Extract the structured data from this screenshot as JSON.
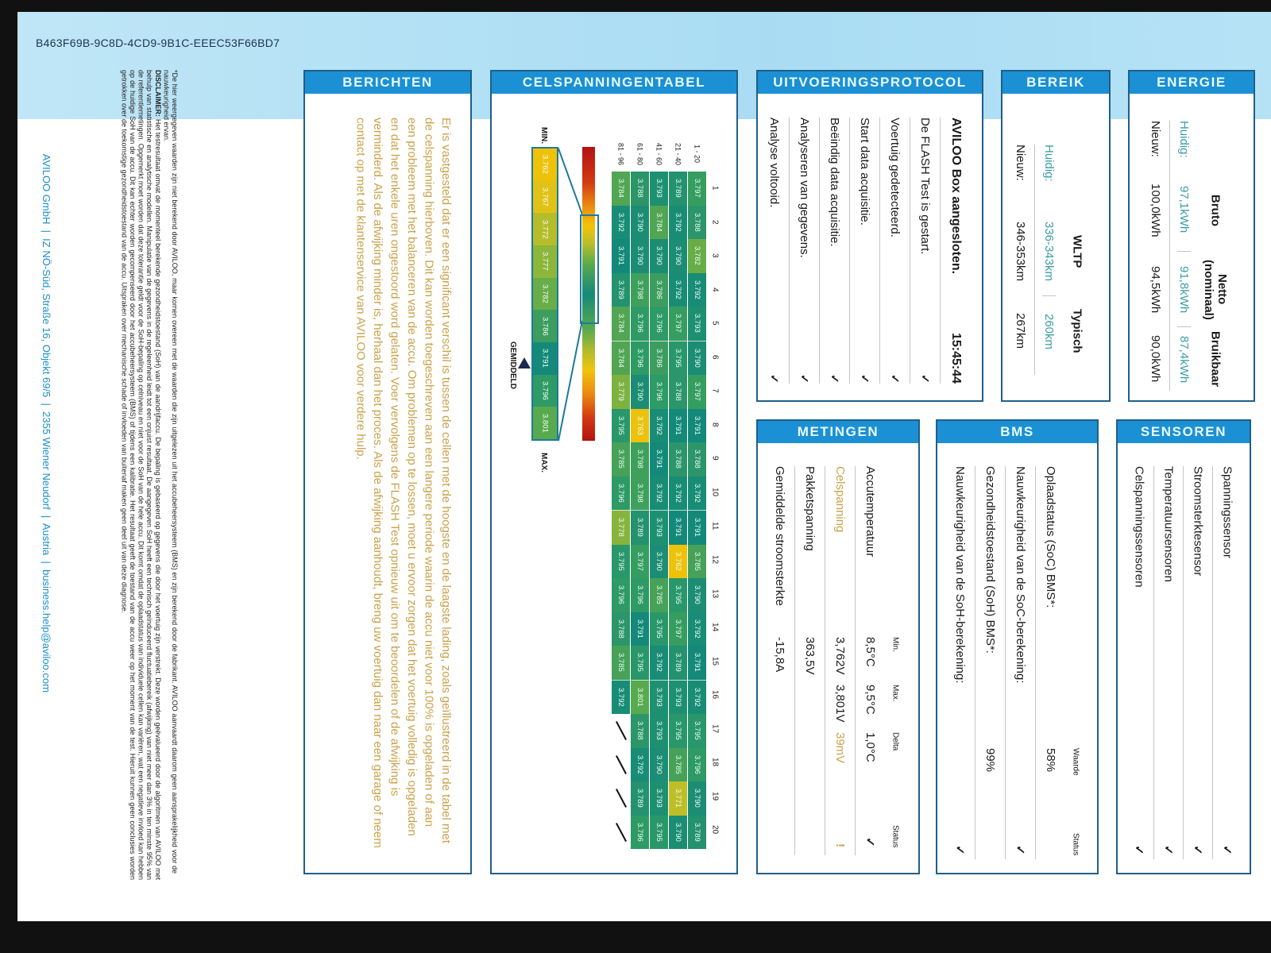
{
  "document_id": "B463F69B-9C8D-4CD9-9B1C-EEEC53F66BD7",
  "berichten": {
    "title": "BERICHTEN",
    "message": "Er is vastgesteld dat er een significant verschil is tussen de cellen met de hoogste en de laagste lading, zoals geïllustreerd in de tabel met de celspanning hierboven. Dit kan worden toegeschreven aan een langere periode waarin de accu niet voor 100% is opgeladen of aan een probleem met het balanceren van de accu. Om problemen op te lossen, moet u ervoor zorgen dat het voertuig volledig is opgeladen en dat het enkele uren ongestoord word gelaten. Voer vervolgens de FLASH Test opnieuw uit om te beoordelen of de afwijking is verminderd. Als de afwijking minder is, herhaal dan het proces. Als de afwijking aanhoudt, breng uw voertuig dan naar een garage of neem contact op met de klantenservice van AVILOO voor verdere hulp.",
    "color": "#c9a24a"
  },
  "celspanning": {
    "title": "CELSPANNINGENTABEL",
    "columns": [
      "1",
      "2",
      "3",
      "4",
      "5",
      "6",
      "7",
      "8",
      "9",
      "10",
      "11",
      "12",
      "13",
      "14",
      "15",
      "16",
      "17",
      "18",
      "19",
      "20"
    ],
    "rows": [
      {
        "label": "1 - 20",
        "values": [
          "3.797",
          "3.788",
          "3.782",
          "3.792",
          "3.793",
          "3.790",
          "3.797",
          "3.791",
          "3.788",
          "3.792",
          "3.791",
          "3.785",
          "3.790",
          "3.792",
          "3.791",
          "3.792",
          "3.795",
          "3.796",
          "3.790",
          "3.789"
        ]
      },
      {
        "label": "21 - 40",
        "values": [
          "3.789",
          "3.792",
          "3.790",
          "3.792",
          "3.797",
          "3.795",
          "3.788",
          "3.791",
          "3.788",
          "3.792",
          "3.791",
          "3.762",
          "3.795",
          "3.797",
          "3.789",
          "3.793",
          "3.795",
          "3.785",
          "3.771",
          "3.790"
        ]
      },
      {
        "label": "41 - 60",
        "values": [
          "3.793",
          "3.784",
          "3.790",
          "3.786",
          "3.796",
          "3.786",
          "3.796",
          "3.792",
          "3.791",
          "3.792",
          "3.793",
          "3.790",
          "3.785",
          "3.795",
          "3.792",
          "3.793",
          "3.793",
          "3.790",
          "3.793",
          "3.795"
        ]
      },
      {
        "label": "61 - 80",
        "values": [
          "3.788",
          "3.790",
          "3.790",
          "3.798",
          "3.796",
          "3.796",
          "3.790",
          "3.763",
          "3.798",
          "3.798",
          "3.789",
          "3.797",
          "3.796",
          "3.791",
          "3.795",
          "3.801",
          "3.788",
          "3.792",
          "3.789",
          "3.796"
        ]
      },
      {
        "label": "81 - 96",
        "values": [
          "3.784",
          "3.792",
          "3.791",
          "3.789",
          "3.784",
          "3.784",
          "3.779",
          "3.795",
          "3.785",
          "3.796",
          "3.778",
          "3.795",
          "3.796",
          "3.788",
          "3.785",
          "3.792",
          null,
          null,
          null,
          null
        ]
      }
    ],
    "legend": {
      "min_label": "MIN.",
      "max_label": "MAX.",
      "average_label": "GEMIDDELD",
      "values": [
        "3.762",
        "3.767",
        "3.772",
        "3.777",
        "3.782",
        "3.786",
        "3.791",
        "3.796",
        "3.801"
      ],
      "colors": [
        "#efc20a",
        "#e2c216",
        "#b6bd2a",
        "#8db63a",
        "#68ad48",
        "#3c9d5e",
        "#14897a",
        "#2e9a66",
        "#58aa4e"
      ]
    }
  },
  "protocol": {
    "title": "UITVOERINGSPROTOCOL",
    "heading": "AVILOO Box aangesloten.",
    "time": "15:45:44",
    "items": [
      "De FLASH Test is gestart.",
      "Voertuig gedetecteerd.",
      "Start data acquisitie.",
      "Beëindig data acquisitie.",
      "Analyseren van gegevens.",
      "Analyse voltooid."
    ],
    "status_icon": "check-icon"
  },
  "bereik": {
    "title": "BEREIK",
    "headers": [
      "WLTP",
      "Typisch"
    ],
    "rows": [
      {
        "label": "Huidig:",
        "values": [
          "336-343km",
          "260km"
        ]
      },
      {
        "label": "Nieuw:",
        "values": [
          "346-353km",
          "267km"
        ]
      }
    ]
  },
  "energie": {
    "title": "ENERGIE",
    "headers": [
      "Bruto",
      "Netto\n(nominaal)",
      "Bruikbaar"
    ],
    "rows": [
      {
        "label": "Huidig:",
        "values": [
          "97,1kWh",
          "91,8kWh",
          "87,4kWh"
        ]
      },
      {
        "label": "Nieuw:",
        "values": [
          "100,0kWh",
          "94,5kWh",
          "90,0kWh"
        ]
      }
    ]
  },
  "metingen": {
    "title": "METINGEN",
    "headers": [
      "Min.",
      "Max.",
      "Delta",
      "Status"
    ],
    "rows": [
      {
        "label": "Accutemperatuur",
        "min": "8,5°C",
        "max": "9,5°C",
        "delta": "1,0°C",
        "status": "✓"
      },
      {
        "label": "Celspanning",
        "min": "3,762V",
        "max": "3,801V",
        "delta": "39mV",
        "status": "!"
      },
      {
        "label": "Pakketspanning",
        "min": "363,5V",
        "max": "",
        "delta": "",
        "status": ""
      },
      {
        "label": "Gemiddelde stroomsterkte",
        "min": "-15,8A",
        "max": "",
        "delta": "",
        "status": ""
      }
    ]
  },
  "bms": {
    "title": "BMS",
    "headers": [
      "Waarde",
      "Status"
    ],
    "rows": [
      {
        "label": "Oplaadstatus (SoC) BMS*:",
        "value": "58%",
        "status": ""
      },
      {
        "label": "Nauwkeurigheid van de SoC-berekening:",
        "value": "",
        "status": "✓"
      },
      {
        "label": "Gezondheidstoestand (SoH) BMS*:",
        "value": "99%",
        "status": ""
      },
      {
        "label": "Nauwkeurigheid van de SoH-berekening:",
        "value": "",
        "status": "✓"
      }
    ]
  },
  "sensoren": {
    "title": "SENSOREN",
    "rows": [
      {
        "label": "Spanningssensor",
        "status": "✓"
      },
      {
        "label": "Stroomsterktesensor",
        "status": "✓"
      },
      {
        "label": "Temperatuursensoren",
        "status": "✓"
      },
      {
        "label": "Celspanningssensoren",
        "status": "✓"
      }
    ]
  },
  "footnote": "*De hier weergegeven waarden zijn niet berekend door AVILOO, maar komen overeen met de waarden die zijn uitgelezen uit het accubeheersysteem (BMS) en zijn berekend door de fabrikant. AVILOO aanvaardt daarom geen aansprakelijkheid voor de nauwkeurigheid ervan.",
  "disclaimer": {
    "label": "DISCLAIMER:",
    "text": " Het testresultaat omvat de momenteel berekende gezondheidstoestand (SoH) van de aandrijfaccu. De bepaling is gebaseerd op gegevens die door het voertuig zijn verstrekt. Deze worden geëvalueerd door de algoritmen van AVILOO met behulp van statistische en analytische modellen. Manipulatie van de gegevens in de regeleenheid leidt tot een onjuist resultaat. De aangegeven SoH heeft een technisch geïnduceerd fluctuatiebereik (afwijking) van niet meer dan 3% in ten minste 95% van de referentiemetingen. Opgemerkt moet worden dat deze tolerantie geldt voor de SoH-bepaling op celniveau en niet voor de SoH van de hele accu. Dit komt omdat de oplaadstatus van individuele cellen kan variëren, wat een negatieve invloed kan hebben op de huidige SoH van de accu. Dit kan echter worden gecompenseerd door het accubeheersysteem (BMS) of tijdens een kalibratie. Het resultaat geeft de toestand van de accu weer op het moment van de test. Hieruit kunnen geen conclusies worden getrokken over de toekomstige gezondheidstoestand van de accu. Uitspraken over mechanische schade of invloeden van buitenaf maken geen deel uit van deze diagnose."
  },
  "footer": "AVILOO GmbH  |  IZ NÖ-Süd, Straße 16, Objekt 69/5  |  2355 Wiener Neudorf  |  Austria  |  business.help@aviloo.com",
  "colors": {
    "header": "#1c90d4",
    "border": "#1f5f88",
    "teal": "#3a9ea5",
    "gold": "#c9a24a"
  }
}
